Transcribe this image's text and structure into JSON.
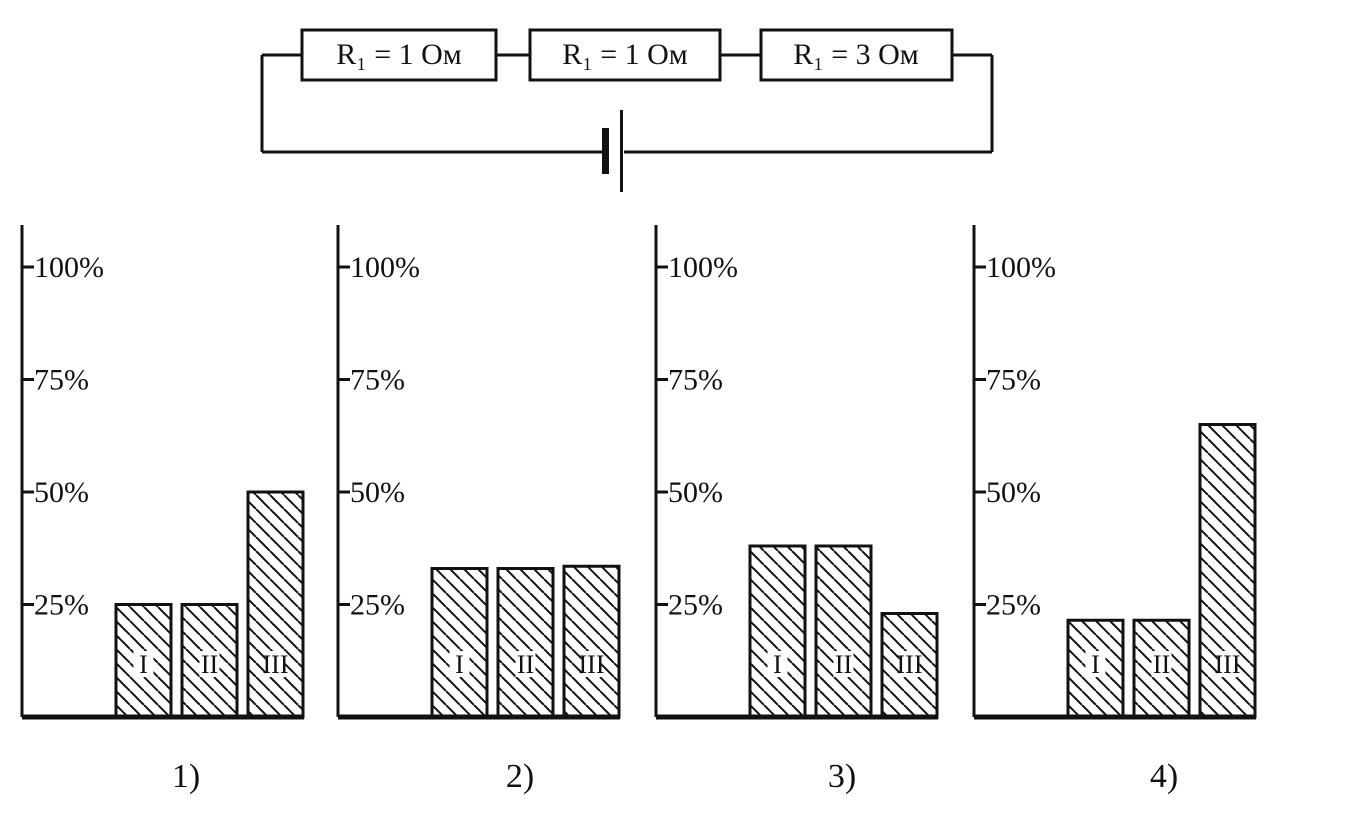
{
  "circuit": {
    "resistors": [
      {
        "label": "R₁ = 1 Ом"
      },
      {
        "label": "R₁ = 1 Ом"
      },
      {
        "label": "R₁ = 3 Ом"
      }
    ]
  },
  "chart_data": [
    {
      "type": "bar",
      "caption": "1)",
      "categories": [
        "I",
        "II",
        "III"
      ],
      "values": [
        25,
        25,
        50
      ],
      "ylim": [
        0,
        100
      ],
      "yticks": [
        "25%",
        "50%",
        "75%",
        "100%"
      ]
    },
    {
      "type": "bar",
      "caption": "2)",
      "categories": [
        "I",
        "II",
        "III"
      ],
      "values": [
        33,
        33,
        33.5
      ],
      "ylim": [
        0,
        100
      ],
      "yticks": [
        "25%",
        "50%",
        "75%",
        "100%"
      ]
    },
    {
      "type": "bar",
      "caption": "3)",
      "categories": [
        "I",
        "II",
        "III"
      ],
      "values": [
        38,
        38,
        23
      ],
      "ylim": [
        0,
        100
      ],
      "yticks": [
        "25%",
        "50%",
        "75%",
        "100%"
      ]
    },
    {
      "type": "bar",
      "caption": "4)",
      "categories": [
        "I",
        "II",
        "III"
      ],
      "values": [
        21.5,
        21.5,
        65
      ],
      "ylim": [
        0,
        100
      ],
      "yticks": [
        "25%",
        "50%",
        "75%",
        "100%"
      ]
    }
  ]
}
